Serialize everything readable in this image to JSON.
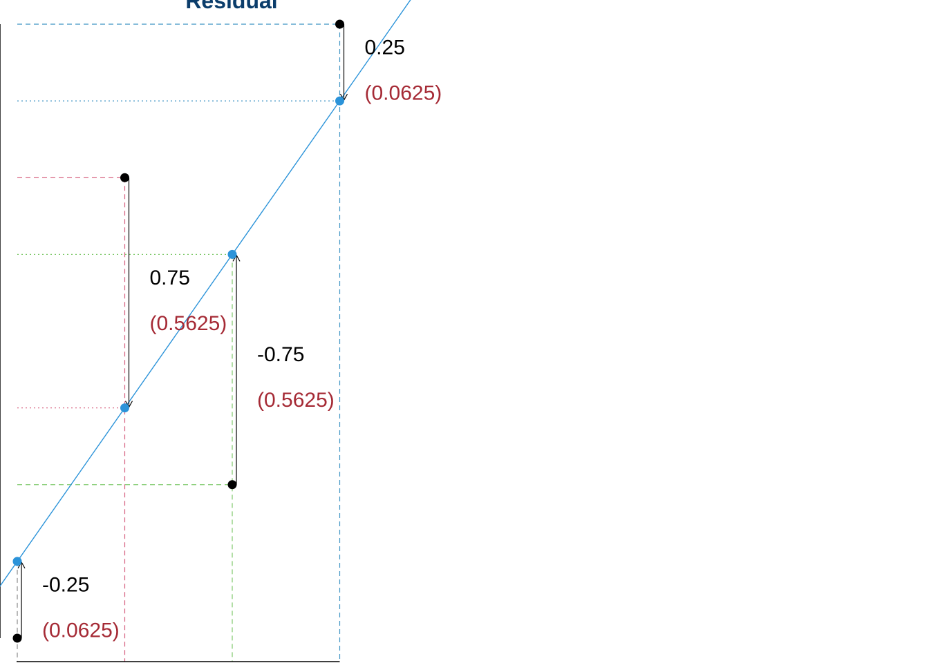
{
  "title": "Residual",
  "colors": {
    "title": "#0b3d6b",
    "fit_line": "#2b93d9",
    "fitted_point": "#2b93d9",
    "observed_point": "#000000",
    "squared_label": "#a52a35",
    "axis": "#000000"
  },
  "chart_data": {
    "type": "scatter",
    "title": "Residual",
    "regression_line": {
      "intercept": 0.25,
      "slope": 0.5
    },
    "points": [
      {
        "x": 0,
        "observed": 0.0,
        "fitted": 0.25,
        "residual": "-0.25",
        "squared": "(0.0625)",
        "guide_color": "#888888"
      },
      {
        "x": 1,
        "observed": 1.5,
        "fitted": 0.75,
        "residual": "0.75",
        "squared": "(0.5625)",
        "guide_color": "#d6607f"
      },
      {
        "x": 2,
        "observed": 0.5,
        "fitted": 1.25,
        "residual": "-0.75",
        "squared": "(0.5625)",
        "guide_color": "#7fc96b"
      },
      {
        "x": 3,
        "observed": 2.0,
        "fitted": 1.75,
        "residual": "0.25",
        "squared": "(0.0625)",
        "guide_color": "#3f94c4"
      }
    ],
    "xlim": [
      0,
      3
    ],
    "ylim": [
      0,
      2
    ]
  }
}
